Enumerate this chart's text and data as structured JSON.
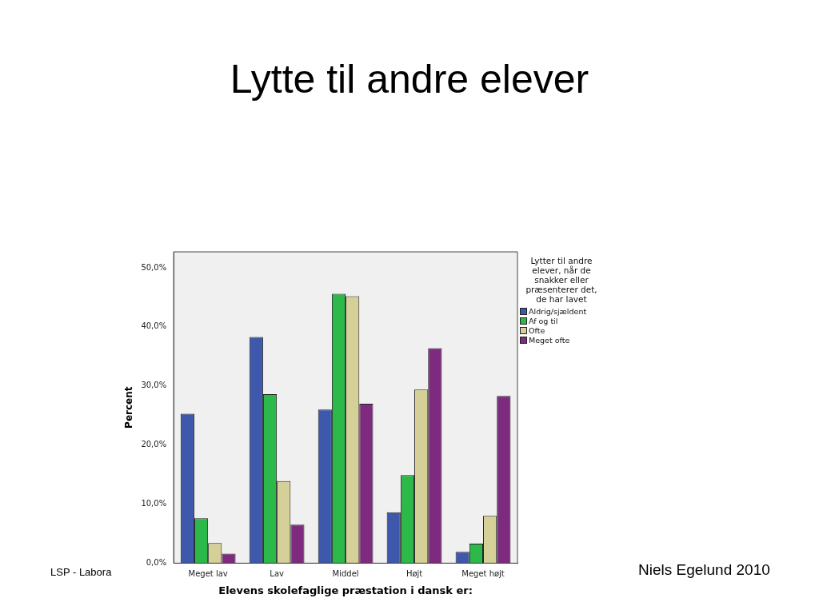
{
  "chart_data": {
    "type": "bar",
    "title": "Lytte til andre elever",
    "xlabel": "Elevens skolefaglige præstation i dansk er:",
    "ylabel": "Percent",
    "legend_title": "Lytter til andre elever, når de snakker eller præsenterer det, de har lavet",
    "categories": [
      "Meget lav",
      "Lav",
      "Middel",
      "Højt",
      "Meget højt"
    ],
    "series": [
      {
        "name": "Aldrig/sjældent",
        "color": "#3e58ac",
        "values": [
          25.3,
          38.3,
          26.0,
          8.6,
          1.9
        ]
      },
      {
        "name": "Af og til",
        "color": "#2db84a",
        "values": [
          7.6,
          28.6,
          45.6,
          14.9,
          3.3
        ]
      },
      {
        "name": "Ofte",
        "color": "#d5cf98",
        "values": [
          3.4,
          13.9,
          45.2,
          29.4,
          8.0
        ]
      },
      {
        "name": "Meget ofte",
        "color": "#7e2a7e",
        "values": [
          1.6,
          6.5,
          27.0,
          36.4,
          28.3
        ]
      }
    ],
    "ylim": [
      0,
      52.7
    ],
    "yticks": [
      {
        "value": 0,
        "label": "0,0%"
      },
      {
        "value": 10,
        "label": "10,0%"
      },
      {
        "value": 20,
        "label": "20,0%"
      },
      {
        "value": 30,
        "label": "30,0%"
      },
      {
        "value": 40,
        "label": "40,0%"
      },
      {
        "value": 50,
        "label": "50,0%"
      }
    ],
    "grid": false,
    "legend": "right",
    "annotations": [
      "LSP - Labora",
      "Niels Egelund 2010"
    ]
  }
}
